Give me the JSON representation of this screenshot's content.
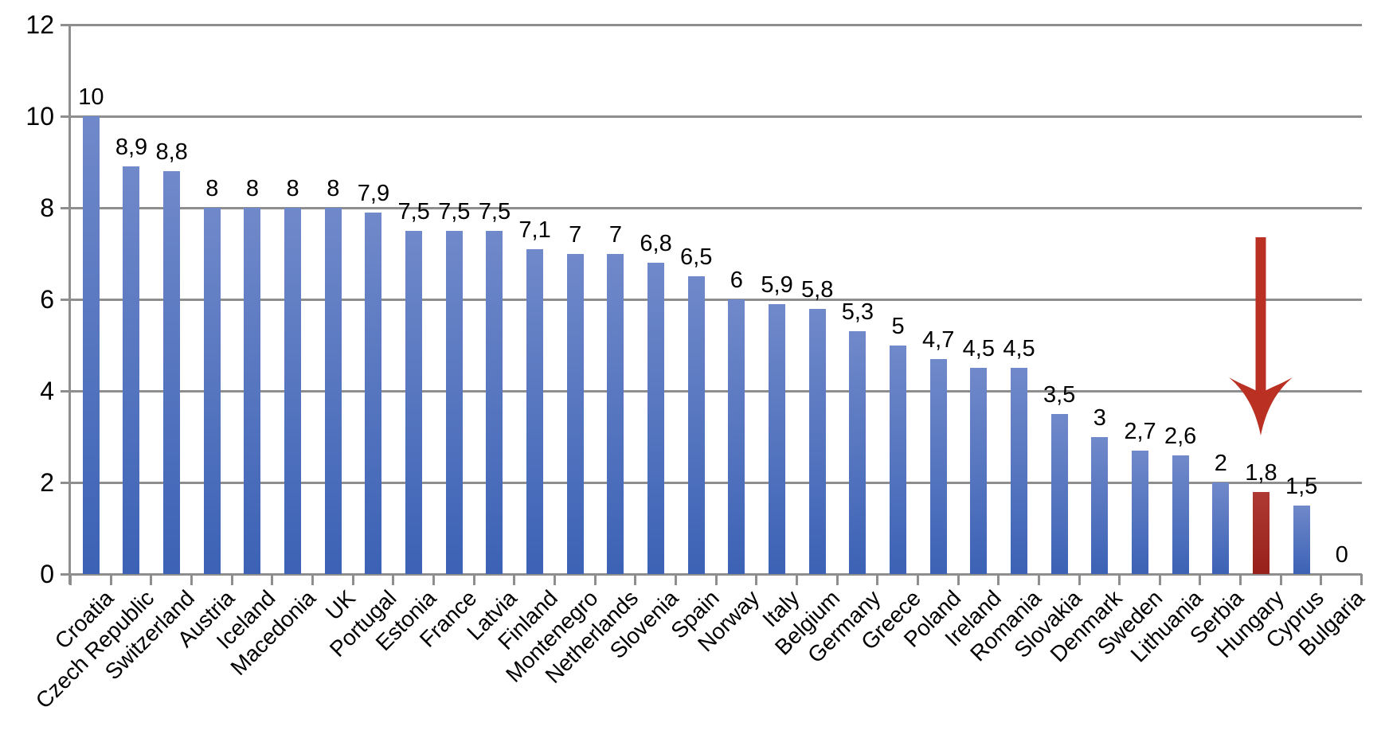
{
  "chart_data": {
    "type": "bar",
    "title": "",
    "xlabel": "",
    "ylabel": "",
    "legend": "none",
    "grid": "horizontal",
    "categories": [
      "Croatia",
      "Czech Republic",
      "Switzerland",
      "Austria",
      "Iceland",
      "Macedonia",
      "UK",
      "Portugal",
      "Estonia",
      "France",
      "Latvia",
      "Finland",
      "Montenegro",
      "Netherlands",
      "Slovenia",
      "Spain",
      "Norway",
      "Italy",
      "Belgium",
      "Germany",
      "Greece",
      "Poland",
      "Ireland",
      "Romania",
      "Slovakia",
      "Denmark",
      "Sweden",
      "Lithuania",
      "Serbia",
      "Hungary",
      "Cyprus",
      "Bulgaria"
    ],
    "values": [
      10,
      8.9,
      8.8,
      8,
      8,
      8,
      8,
      7.9,
      7.5,
      7.5,
      7.5,
      7.1,
      7,
      7,
      6.8,
      6.5,
      6,
      5.9,
      5.8,
      5.3,
      5,
      4.7,
      4.5,
      4.5,
      3.5,
      3,
      2.7,
      2.6,
      2,
      1.8,
      1.5,
      0
    ],
    "value_labels": [
      "10",
      "8,9",
      "8,8",
      "8",
      "8",
      "8",
      "8",
      "7,9",
      "7,5",
      "7,5",
      "7,5",
      "7,1",
      "7",
      "7",
      "6,8",
      "6,5",
      "6",
      "5,9",
      "5,8",
      "5,3",
      "5",
      "4,7",
      "4,5",
      "4,5",
      "3,5",
      "3",
      "2,7",
      "2,6",
      "2",
      "1,8",
      "1,5",
      "0"
    ],
    "ylim": [
      0,
      12
    ],
    "yticks": [
      0,
      2,
      4,
      6,
      8,
      10,
      12
    ],
    "ytick_labels": [
      "0",
      "2",
      "4",
      "6",
      "8",
      "10",
      "12"
    ],
    "highlight": {
      "category": "Hungary",
      "annotation": "red-down-arrow"
    },
    "colors": {
      "bar_top": "#7089ca",
      "bar_bottom": "#3c62b5",
      "highlight_bar_top": "#ae3a33",
      "highlight_bar_bottom": "#97201b",
      "arrow": "#ba3124",
      "gridline": "#8e8e8e",
      "text": "#000000",
      "background": "#ffffff"
    }
  }
}
